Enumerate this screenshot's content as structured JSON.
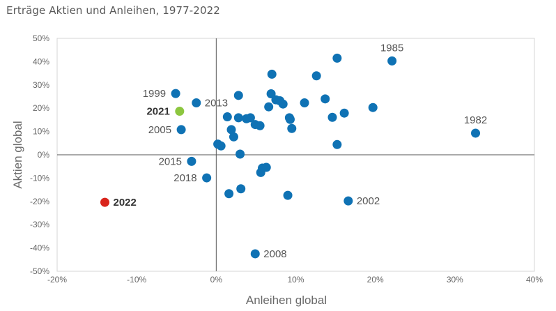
{
  "page": {
    "title": "Erträge Aktien und Anleihen, 1977-2022"
  },
  "chart_data": {
    "type": "scatter",
    "title": "Erträge Aktien und Anleihen, 1977-2022",
    "xlabel": "Anleihen global",
    "ylabel": "Aktien global",
    "xlim": [
      -20,
      40
    ],
    "ylim": [
      -50,
      50
    ],
    "x_ticks": [
      "-20%",
      "-10%",
      "0%",
      "10%",
      "20%",
      "30%",
      "40%"
    ],
    "y_ticks": [
      "50%",
      "40%",
      "30%",
      "20%",
      "10%",
      "0%",
      "-10%",
      "-20%",
      "-30%",
      "-40%",
      "-50%"
    ],
    "grid": false,
    "colors": {
      "default": "#0f72b4",
      "highlight_2021": "#8cc63f",
      "highlight_2022": "#d9241c"
    },
    "points": [
      {
        "x": 22.1,
        "y": 40.3,
        "label": "1985",
        "label_pos": "above"
      },
      {
        "x": 32.6,
        "y": 9.3,
        "label": "1982",
        "label_pos": "above"
      },
      {
        "x": -5.1,
        "y": 26.3,
        "label": "1999",
        "label_pos": "left"
      },
      {
        "x": -2.5,
        "y": 22.3,
        "label": "2013",
        "label_pos": "right"
      },
      {
        "x": -4.6,
        "y": 18.7,
        "label": "2021",
        "label_pos": "left",
        "highlight": "highlight_2021",
        "bold": true
      },
      {
        "x": -4.4,
        "y": 10.8,
        "label": "2005",
        "label_pos": "left"
      },
      {
        "x": -3.1,
        "y": -2.8,
        "label": "2015",
        "label_pos": "left"
      },
      {
        "x": -1.2,
        "y": -9.9,
        "label": "2018",
        "label_pos": "left"
      },
      {
        "x": -14.0,
        "y": -20.4,
        "label": "2022",
        "label_pos": "right",
        "highlight": "highlight_2022",
        "bold": true
      },
      {
        "x": 16.6,
        "y": -19.8,
        "label": "2002",
        "label_pos": "right"
      },
      {
        "x": 4.9,
        "y": -42.5,
        "label": "2008",
        "label_pos": "right"
      },
      {
        "x": 15.2,
        "y": 41.5
      },
      {
        "x": 12.6,
        "y": 33.9
      },
      {
        "x": 7.0,
        "y": 34.6
      },
      {
        "x": 2.8,
        "y": 25.5
      },
      {
        "x": 6.9,
        "y": 26.2
      },
      {
        "x": 7.5,
        "y": 23.6
      },
      {
        "x": 8.0,
        "y": 23.2
      },
      {
        "x": 8.4,
        "y": 21.8
      },
      {
        "x": 6.6,
        "y": 20.6
      },
      {
        "x": 11.1,
        "y": 22.3
      },
      {
        "x": 13.7,
        "y": 24.0
      },
      {
        "x": 19.7,
        "y": 20.3
      },
      {
        "x": 16.1,
        "y": 17.9
      },
      {
        "x": 14.6,
        "y": 16.1
      },
      {
        "x": 1.4,
        "y": 16.3
      },
      {
        "x": 2.8,
        "y": 15.9
      },
      {
        "x": 3.8,
        "y": 15.5
      },
      {
        "x": 4.3,
        "y": 15.9
      },
      {
        "x": 4.9,
        "y": 13.0
      },
      {
        "x": 5.5,
        "y": 12.5
      },
      {
        "x": 9.2,
        "y": 15.9
      },
      {
        "x": 9.3,
        "y": 15.2
      },
      {
        "x": 9.5,
        "y": 11.3
      },
      {
        "x": 1.9,
        "y": 10.8
      },
      {
        "x": 2.2,
        "y": 7.7
      },
      {
        "x": 0.2,
        "y": 4.6
      },
      {
        "x": 0.6,
        "y": 3.8
      },
      {
        "x": 15.2,
        "y": 4.4
      },
      {
        "x": 3.0,
        "y": 0.3
      },
      {
        "x": 5.8,
        "y": -5.7
      },
      {
        "x": 6.3,
        "y": -5.4
      },
      {
        "x": 5.6,
        "y": -7.6
      },
      {
        "x": 3.1,
        "y": -14.6
      },
      {
        "x": 1.6,
        "y": -16.7
      },
      {
        "x": 9.0,
        "y": -17.4
      }
    ]
  }
}
